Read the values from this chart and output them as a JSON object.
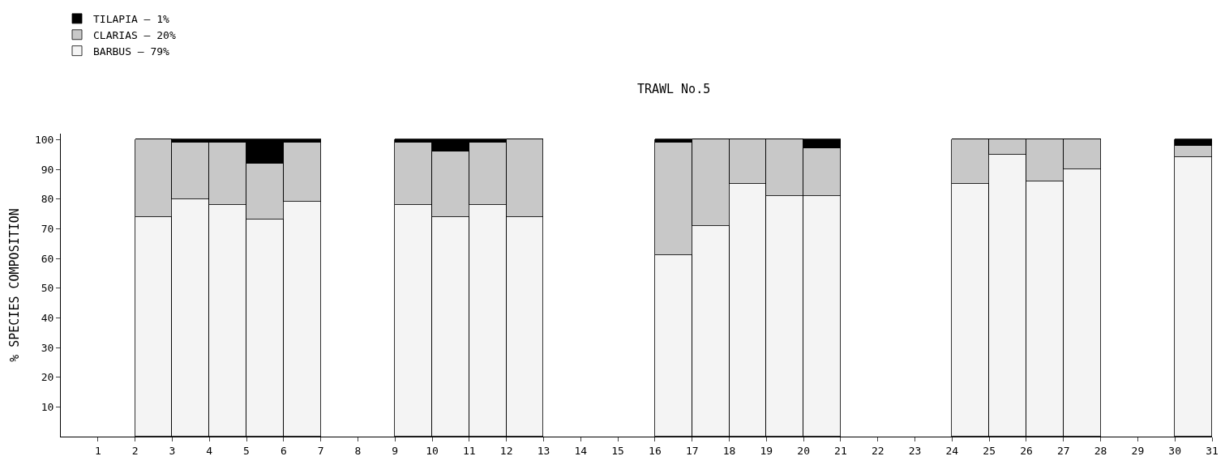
{
  "chart_data": {
    "type": "bar",
    "stacked": true,
    "title": "TRAWL No.5",
    "ylabel": "% SPECIES COMPOSITION",
    "x": [
      2.5,
      3.5,
      4.5,
      5.5,
      6.5,
      9.5,
      10.5,
      11.5,
      12.5,
      16.5,
      17.5,
      18.5,
      19.5,
      20.5,
      24.5,
      25.5,
      26.5,
      27.5,
      30.5
    ],
    "series": [
      {
        "name": "BARBUS — 79%",
        "color": "#f4f4f4",
        "values": [
          74,
          80,
          78,
          73,
          79,
          78,
          74,
          78,
          74,
          61,
          71,
          85,
          81,
          81,
          85,
          95,
          86,
          90,
          94
        ]
      },
      {
        "name": "CLARIAS — 20%",
        "color": "#c8c8c8",
        "values": [
          26,
          19,
          21,
          19,
          20,
          21,
          22,
          21,
          26,
          38,
          29,
          15,
          19,
          16,
          15,
          5,
          14,
          10,
          4
        ]
      },
      {
        "name": "TILAPIA — 1%",
        "color": "#000000",
        "values": [
          0,
          1,
          1,
          8,
          1,
          1,
          4,
          1,
          0,
          1,
          0,
          0,
          0,
          3,
          0,
          0,
          0,
          0,
          2
        ]
      }
    ],
    "xlim": [
      0,
      31
    ],
    "xticks": [
      1,
      2,
      3,
      4,
      5,
      6,
      7,
      8,
      9,
      10,
      11,
      12,
      13,
      14,
      15,
      16,
      17,
      18,
      19,
      20,
      21,
      22,
      23,
      24,
      25,
      26,
      27,
      28,
      29,
      30,
      31
    ],
    "ylim": [
      0,
      102
    ],
    "yticks": [
      10,
      20,
      30,
      40,
      50,
      60,
      70,
      80,
      90,
      100
    ],
    "legend": "top left"
  }
}
